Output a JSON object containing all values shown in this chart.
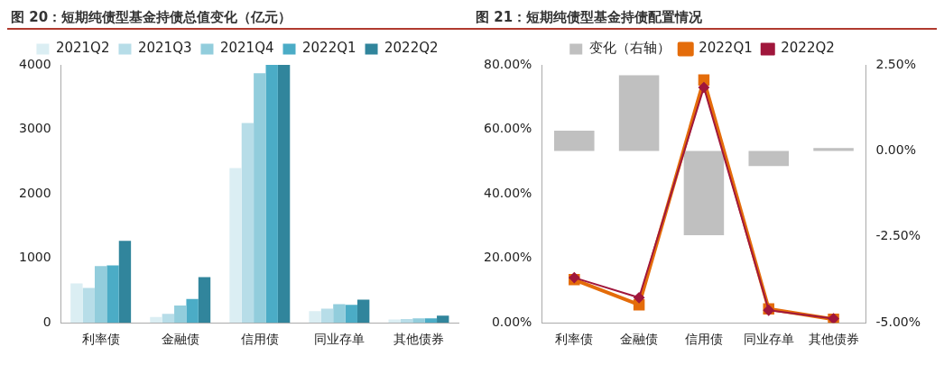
{
  "chart_data": [
    {
      "type": "bar",
      "title": "图 20：短期纯债型基金持债总值变化（亿元）",
      "categories": [
        "利率债",
        "金融债",
        "信用债",
        "同业存单",
        "其他债券"
      ],
      "series": [
        {
          "name": "2021Q2",
          "color": "#dbeef3",
          "values": [
            610,
            90,
            2400,
            180,
            50
          ]
        },
        {
          "name": "2021Q3",
          "color": "#b7dde8",
          "values": [
            540,
            140,
            3100,
            220,
            60
          ]
        },
        {
          "name": "2021Q4",
          "color": "#92cddc",
          "values": [
            880,
            270,
            3870,
            290,
            70
          ]
        },
        {
          "name": "2022Q1",
          "color": "#4bacc6",
          "values": [
            890,
            370,
            4000,
            280,
            70
          ]
        },
        {
          "name": "2022Q2",
          "color": "#31859c",
          "values": [
            1270,
            710,
            4000,
            360,
            110
          ]
        }
      ],
      "ylim": [
        0,
        4000
      ],
      "yticks": [
        0,
        1000,
        2000,
        3000,
        4000
      ],
      "legend": "top"
    },
    {
      "type": "line",
      "title": "图 21：短期纯债型基金持债配置情况",
      "categories": [
        "利率债",
        "金融债",
        "信用债",
        "同业存单",
        "其他债券"
      ],
      "series": [
        {
          "name": "变化（右轴）",
          "type": "bar",
          "axis": "y2",
          "color": "#c0c0c0",
          "values": [
            0.59,
            2.2,
            -2.45,
            -0.44,
            0.08
          ]
        },
        {
          "name": "2022Q1",
          "type": "line",
          "marker": "square",
          "color": "#e46c0a",
          "values": [
            13.4,
            5.6,
            75.3,
            4.3,
            1.1
          ]
        },
        {
          "name": "2022Q2",
          "type": "line",
          "marker": "diamond",
          "color": "#a0173c",
          "values": [
            14.0,
            7.8,
            73.0,
            3.9,
            1.3
          ]
        }
      ],
      "ylim": [
        0,
        80
      ],
      "yticks": [
        {
          "value": 0,
          "label": "0.00%"
        },
        {
          "value": 20,
          "label": "20.00%"
        },
        {
          "value": 40,
          "label": "40.00%"
        },
        {
          "value": 60,
          "label": "60.00%"
        },
        {
          "value": 80,
          "label": "80.00%"
        }
      ],
      "y2lim": [
        -5,
        2.5
      ],
      "y2ticks": [
        {
          "value": -5,
          "label": "-5.00%"
        },
        {
          "value": -2.5,
          "label": "-2.50%"
        },
        {
          "value": 0,
          "label": "0.00%"
        },
        {
          "value": 2.5,
          "label": "2.50%"
        }
      ],
      "legend": "top"
    }
  ]
}
